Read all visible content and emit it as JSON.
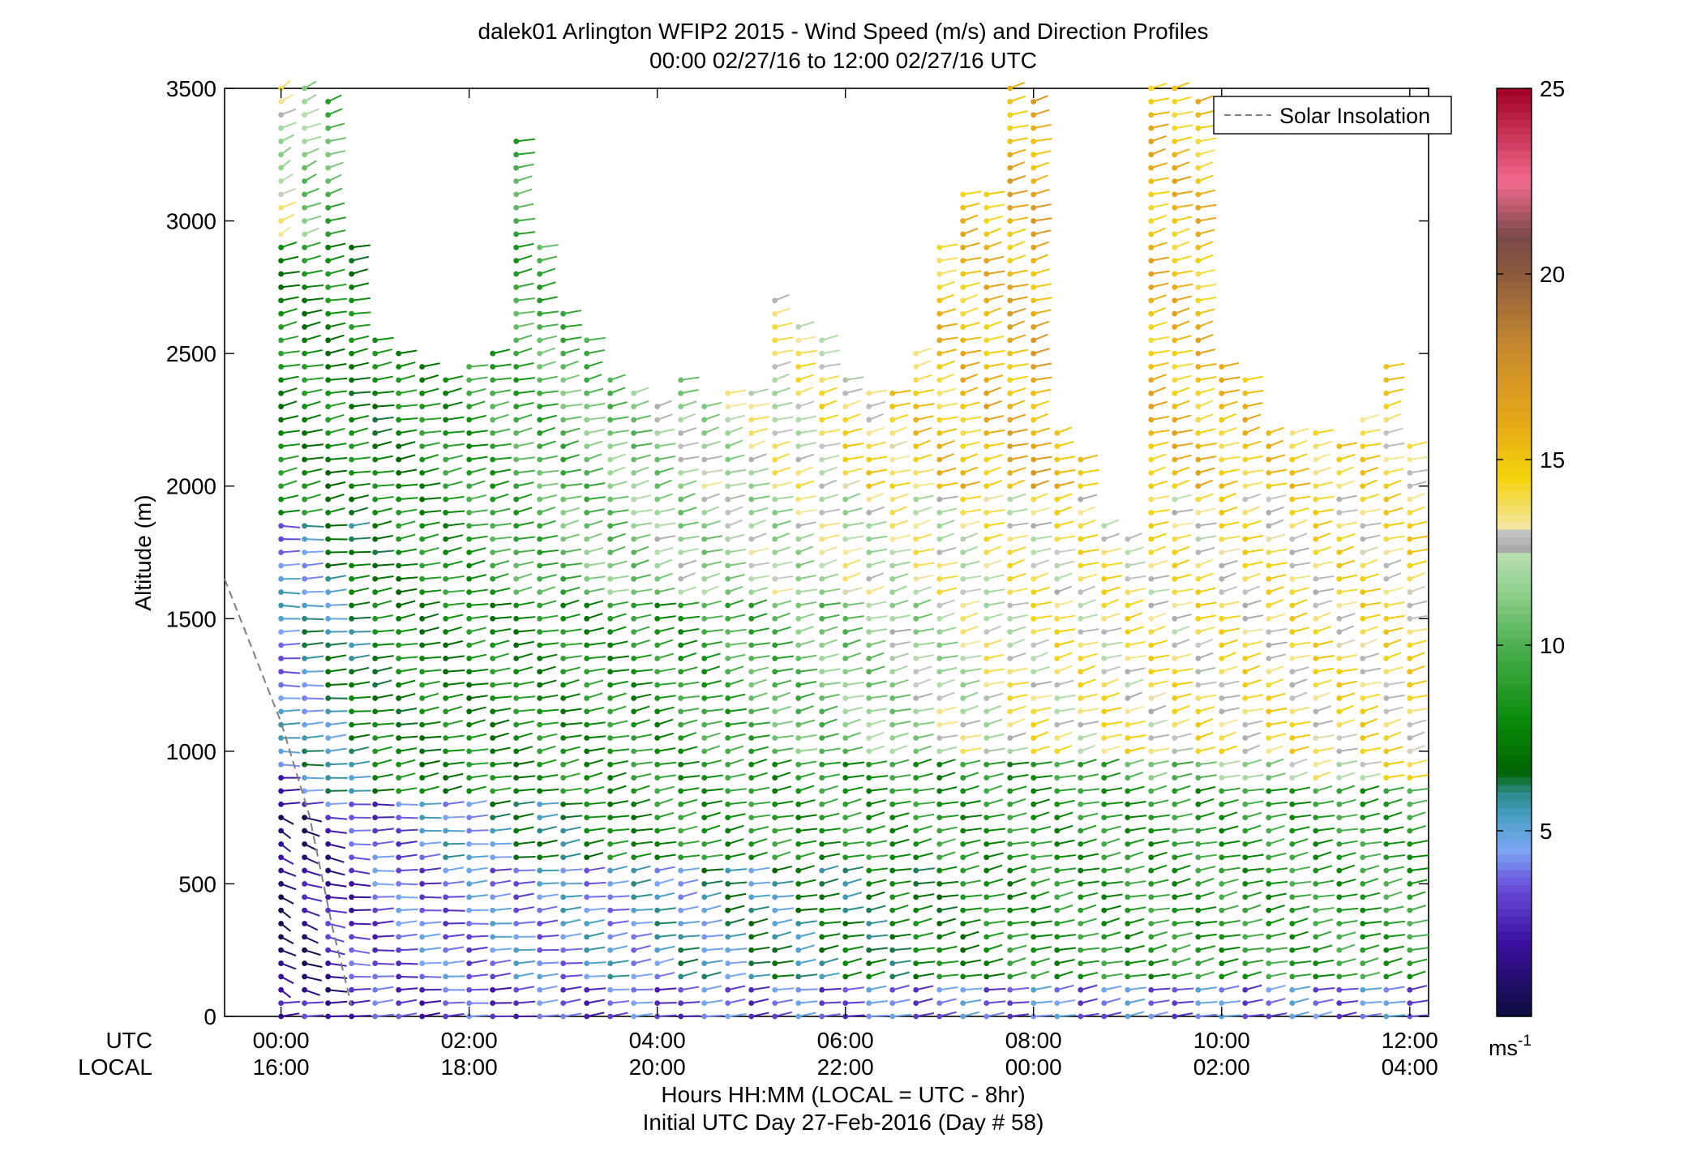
{
  "chart_data": {
    "type": "wind_profile_barbs",
    "title": "dalek01 Arlington WFIP2 2015 - Wind Speed (m/s) and Direction Profiles",
    "subtitle": "00:00 02/27/16 to 12:00 02/27/16  UTC",
    "ylabel": "Altitude (m)",
    "xlabel_line1": "Hours HH:MM  (LOCAL = UTC - 8hr)",
    "xlabel_line2": "Initial UTC Day 27-Feb-2016 (Day # 58)",
    "ylim": [
      0,
      3500
    ],
    "xlim_hours": [
      -0.6,
      12.2
    ],
    "y_ticks": [
      0,
      500,
      1000,
      1500,
      2000,
      2500,
      3000,
      3500
    ],
    "y_tick_labels": [
      "0",
      "500",
      "1000",
      "1500",
      "2000",
      "2500",
      "3000",
      "3500"
    ],
    "x_row_labels": {
      "utc": "UTC",
      "local": "LOCAL"
    },
    "x_ticks": [
      {
        "hour": 0,
        "utc": "00:00",
        "local": "16:00"
      },
      {
        "hour": 2,
        "utc": "02:00",
        "local": "18:00"
      },
      {
        "hour": 4,
        "utc": "04:00",
        "local": "20:00"
      },
      {
        "hour": 6,
        "utc": "06:00",
        "local": "22:00"
      },
      {
        "hour": 8,
        "utc": "08:00",
        "local": "00:00"
      },
      {
        "hour": 10,
        "utc": "10:00",
        "local": "02:00"
      },
      {
        "hour": 12,
        "utc": "12:00",
        "local": "04:00"
      }
    ],
    "legend": {
      "label": "Solar Insolation",
      "position": "top-right",
      "line_style": "dashed",
      "color": "#7f7f7f"
    },
    "solar_insolation_curve": [
      {
        "hour": -0.6,
        "altitude": 1650
      },
      {
        "hour": -0.3,
        "altitude": 1380
      },
      {
        "hour": 0.0,
        "altitude": 1110
      },
      {
        "hour": 0.3,
        "altitude": 760
      },
      {
        "hour": 0.55,
        "altitude": 330
      },
      {
        "hour": 0.75,
        "altitude": 40
      }
    ],
    "colorbar": {
      "unit_label": "ms",
      "unit_exponent": "-1",
      "min": 0,
      "max": 25,
      "tick_values": [
        5,
        10,
        15,
        20,
        25
      ],
      "tick_labels": [
        "5",
        "10",
        "15",
        "20",
        "25"
      ],
      "colors": [
        {
          "v": 0,
          "c": "#0d0d3d"
        },
        {
          "v": 2,
          "c": "#3b0fa0"
        },
        {
          "v": 3.5,
          "c": "#6a4fdc"
        },
        {
          "v": 4.5,
          "c": "#7da7f5"
        },
        {
          "v": 5.4,
          "c": "#4a9fc4"
        },
        {
          "v": 6.0,
          "c": "#2e8b8b"
        },
        {
          "v": 6.6,
          "c": "#006400"
        },
        {
          "v": 8.0,
          "c": "#0b8c0b"
        },
        {
          "v": 10.0,
          "c": "#4caf50"
        },
        {
          "v": 11.5,
          "c": "#93d08f"
        },
        {
          "v": 12.5,
          "c": "#b8ddb0"
        },
        {
          "v": 12.6,
          "c": "#aaaaaa"
        },
        {
          "v": 13.1,
          "c": "#c6c6c6"
        },
        {
          "v": 13.2,
          "c": "#f5e6a0"
        },
        {
          "v": 14.5,
          "c": "#f2d30c"
        },
        {
          "v": 16.0,
          "c": "#e6a817"
        },
        {
          "v": 18.0,
          "c": "#c98a2e"
        },
        {
          "v": 20.0,
          "c": "#8b5a3c"
        },
        {
          "v": 21.0,
          "c": "#7a4a4a"
        },
        {
          "v": 22.5,
          "c": "#f26a8d"
        },
        {
          "v": 25.0,
          "c": "#a00024"
        }
      ]
    },
    "profiles": {
      "hours": [
        0,
        0.25,
        0.5,
        0.75,
        1,
        1.25,
        1.5,
        1.75,
        2,
        2.25,
        2.5,
        2.75,
        3,
        3.25,
        3.5,
        3.75,
        4,
        4.25,
        4.5,
        4.75,
        5,
        5.25,
        5.5,
        5.75,
        6,
        6.25,
        6.5,
        6.75,
        7,
        7.25,
        7.5,
        7.75,
        8,
        8.25,
        8.5,
        8.75,
        9,
        9.25,
        9.5,
        9.75,
        10,
        10.25,
        10.5,
        10.75,
        11,
        11.25,
        11.5,
        11.75,
        12
      ],
      "tops_m": [
        3500,
        3500,
        3450,
        2900,
        2550,
        2500,
        2450,
        2400,
        2450,
        2500,
        3300,
        2900,
        2650,
        2550,
        2400,
        2350,
        2300,
        2400,
        2300,
        2350,
        2350,
        2700,
        2600,
        2550,
        2400,
        2350,
        2350,
        2500,
        2900,
        3100,
        3100,
        3500,
        3450,
        2200,
        2100,
        1850,
        1800,
        3500,
        3500,
        3450,
        2450,
        2400,
        2200,
        2200,
        2200,
        2150,
        2250,
        2450,
        2150
      ],
      "gate_spacing_m": 50,
      "speed_layers": [
        {
          "hour": 0,
          "bottom": 0,
          "top": 100,
          "speed": 2.0,
          "dir": 250
        },
        {
          "hour": 0,
          "bottom": 100,
          "top": 800,
          "speed": 0.8,
          "dir": 320
        },
        {
          "hour": 0,
          "bottom": 800,
          "top": 950,
          "speed": 3.0,
          "dir": 270
        },
        {
          "hour": 0,
          "bottom": 950,
          "top": 1900,
          "speed": 4.5,
          "dir": 270
        },
        {
          "hour": 0,
          "bottom": 1900,
          "top": 2950,
          "speed": 8.0,
          "dir": 245
        },
        {
          "hour": 0,
          "bottom": 2950,
          "top": 3500,
          "speed": 12.5,
          "dir": 220
        },
        {
          "hour": 1,
          "bottom": 0,
          "top": 150,
          "speed": 3.0,
          "dir": 260
        },
        {
          "hour": 1,
          "bottom": 150,
          "top": 850,
          "speed": 3.5,
          "dir": 265
        },
        {
          "hour": 1,
          "bottom": 850,
          "top": 2500,
          "speed": 7.5,
          "dir": 250
        },
        {
          "hour": 4,
          "bottom": 0,
          "top": 150,
          "speed": 3.5,
          "dir": 255
        },
        {
          "hour": 4,
          "bottom": 150,
          "top": 600,
          "speed": 5.0,
          "dir": 250
        },
        {
          "hour": 4,
          "bottom": 600,
          "top": 1600,
          "speed": 8.5,
          "dir": 245
        },
        {
          "hour": 4,
          "bottom": 1600,
          "top": 2400,
          "speed": 11.5,
          "dir": 240
        },
        {
          "hour": 8,
          "bottom": 0,
          "top": 150,
          "speed": 4.0,
          "dir": 250
        },
        {
          "hour": 8,
          "bottom": 150,
          "top": 1000,
          "speed": 8.5,
          "dir": 245
        },
        {
          "hour": 8,
          "bottom": 1000,
          "top": 2000,
          "speed": 13.5,
          "dir": 240
        },
        {
          "hour": 8,
          "bottom": 2000,
          "top": 3500,
          "speed": 16.0,
          "dir": 240
        },
        {
          "hour": 12,
          "bottom": 0,
          "top": 150,
          "speed": 4.0,
          "dir": 250
        },
        {
          "hour": 12,
          "bottom": 150,
          "top": 900,
          "speed": 9.0,
          "dir": 245
        },
        {
          "hour": 12,
          "bottom": 900,
          "top": 2200,
          "speed": 14.0,
          "dir": 240
        }
      ]
    }
  }
}
